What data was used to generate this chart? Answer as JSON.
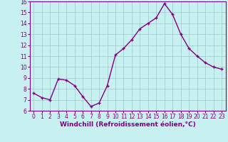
{
  "x": [
    0,
    1,
    2,
    3,
    4,
    5,
    6,
    7,
    8,
    9,
    10,
    11,
    12,
    13,
    14,
    15,
    16,
    17,
    18,
    19,
    20,
    21,
    22,
    23
  ],
  "y": [
    7.6,
    7.2,
    7.0,
    8.9,
    8.8,
    8.3,
    7.3,
    6.4,
    6.7,
    8.3,
    11.1,
    11.7,
    12.5,
    13.5,
    14.0,
    14.5,
    15.8,
    14.8,
    13.0,
    11.7,
    11.0,
    10.4,
    10.0,
    9.8
  ],
  "color": "#800080",
  "bg_color": "#c8f0f0",
  "grid_color": "#a0c8c8",
  "xlabel": "Windchill (Refroidissement éolien,°C)",
  "ylim": [
    6,
    16
  ],
  "xlim_min": -0.5,
  "xlim_max": 23.5,
  "yticks": [
    6,
    7,
    8,
    9,
    10,
    11,
    12,
    13,
    14,
    15,
    16
  ],
  "xticks": [
    0,
    1,
    2,
    3,
    4,
    5,
    6,
    7,
    8,
    9,
    10,
    11,
    12,
    13,
    14,
    15,
    16,
    17,
    18,
    19,
    20,
    21,
    22,
    23
  ],
  "tick_color": "#800080",
  "label_color": "#800080",
  "font_size": 5.5,
  "xlabel_fontsize": 6.5,
  "linewidth": 1.0,
  "markersize": 2.5,
  "marker": "+"
}
